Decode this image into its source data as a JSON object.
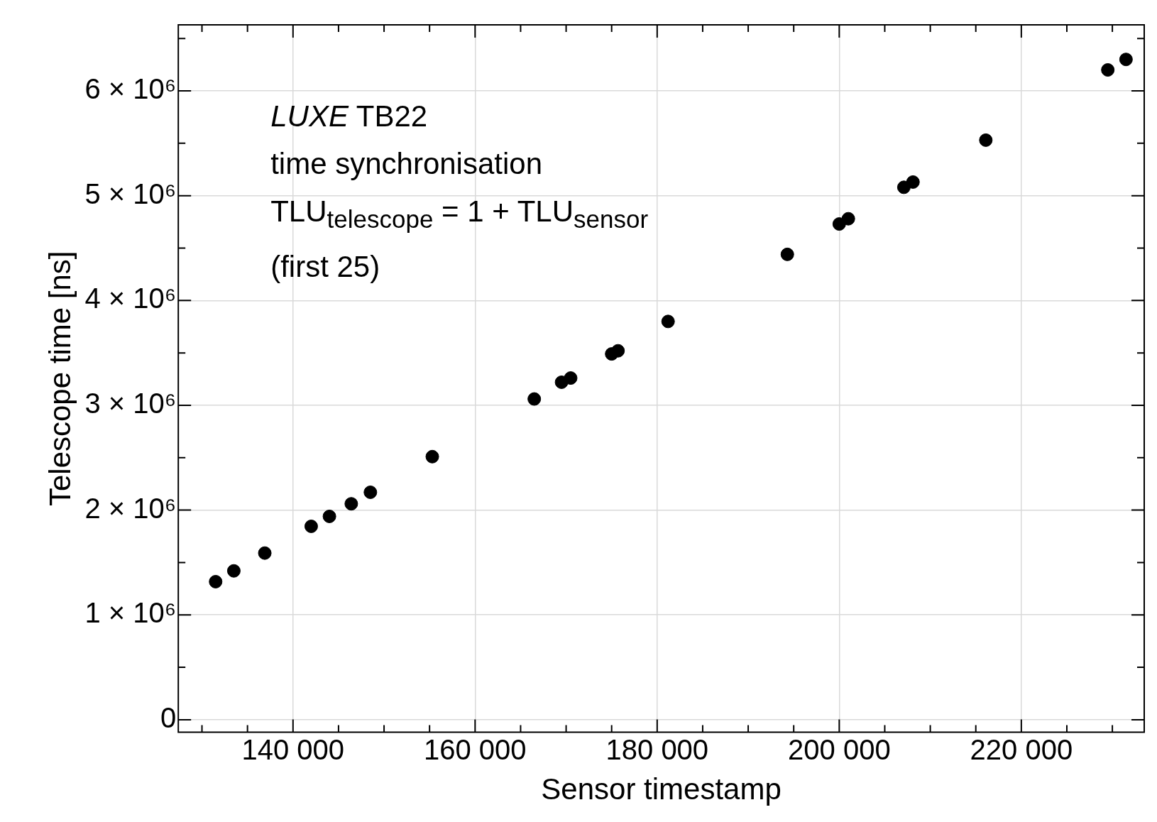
{
  "chart_data": {
    "type": "scatter",
    "xlabel": "Sensor timestamp",
    "ylabel": "Telescope time [ns]",
    "annotations": [
      "LUXE TB22",
      "time synchronisation",
      "TLU$_{telescope}$ = 1 + TLU$_{sensor}$",
      "(first 25)"
    ],
    "x": [
      131500,
      133500,
      136900,
      142000,
      144000,
      146400,
      148500,
      155300,
      166500,
      169500,
      170500,
      175000,
      175700,
      181200,
      194300,
      200000,
      201000,
      207100,
      208100,
      216100,
      229500,
      231500
    ],
    "series": [
      {
        "color": "#000000",
        "values": [
          1317000,
          1420000,
          1590000,
          1845000,
          1940000,
          2060000,
          2170000,
          2510000,
          3060000,
          3220000,
          3260000,
          3490000,
          3520000,
          3800000,
          4440000,
          4730000,
          4780000,
          5080000,
          5130000,
          5530000,
          6200000,
          6300000
        ]
      }
    ],
    "marker": "circle",
    "grid": true,
    "legend": false,
    "xlim": [
      127400,
      233500
    ],
    "xticks": [
      {
        "value": 130000,
        "label": null
      },
      {
        "value": 135000,
        "label": null
      },
      {
        "value": 140000,
        "label": "140 000"
      },
      {
        "value": 145000,
        "label": null
      },
      {
        "value": 150000,
        "label": null
      },
      {
        "value": 155000,
        "label": null
      },
      {
        "value": 160000,
        "label": "160 000"
      },
      {
        "value": 165000,
        "label": null
      },
      {
        "value": 170000,
        "label": null
      },
      {
        "value": 175000,
        "label": null
      },
      {
        "value": 180000,
        "label": "180 000"
      },
      {
        "value": 185000,
        "label": null
      },
      {
        "value": 190000,
        "label": null
      },
      {
        "value": 195000,
        "label": null
      },
      {
        "value": 200000,
        "label": "200 000"
      },
      {
        "value": 205000,
        "label": null
      },
      {
        "value": 210000,
        "label": null
      },
      {
        "value": 215000,
        "label": null
      },
      {
        "value": 220000,
        "label": "220 000"
      },
      {
        "value": 225000,
        "label": null
      },
      {
        "value": 230000,
        "label": null
      }
    ],
    "ylim": [
      -120000,
      6630000
    ],
    "yticks": [
      0,
      {
        "value": 500000,
        "label": null
      },
      {
        "value": 1000000,
        "label": "1 × 10⁶"
      },
      {
        "value": 1500000,
        "label": null
      },
      {
        "value": 2000000,
        "label": "2 × 10⁶"
      },
      {
        "value": 2500000,
        "label": null
      },
      {
        "value": 3000000,
        "label": "3 × 10⁶"
      },
      {
        "value": 3500000,
        "label": null
      },
      {
        "value": 4000000,
        "label": "4 × 10⁶"
      },
      {
        "value": 4500000,
        "label": null
      },
      {
        "value": 5000000,
        "label": "5 × 10⁶"
      },
      {
        "value": 5500000,
        "label": null
      },
      {
        "value": 6000000,
        "label": "6 × 10⁶"
      },
      {
        "value": 6500000,
        "label": null
      }
    ]
  }
}
